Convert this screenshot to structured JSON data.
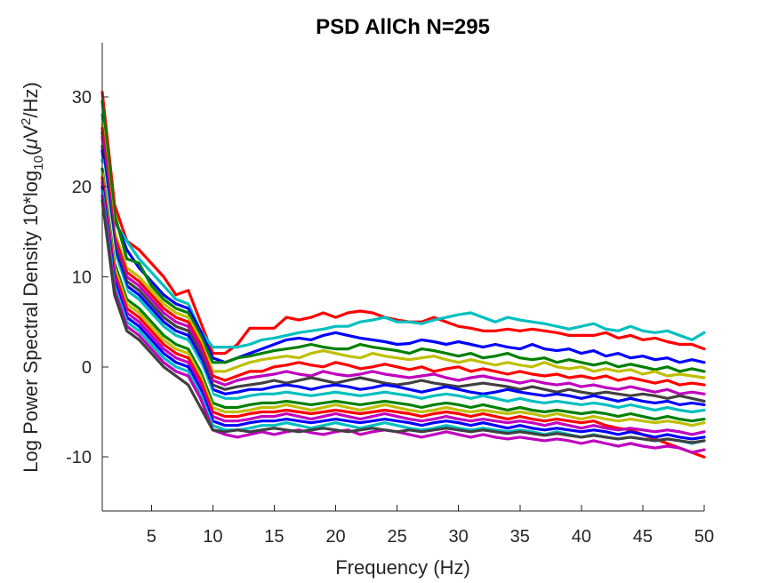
{
  "chart_data": {
    "type": "line",
    "title": "PSD AllCh N=295",
    "xlabel": "Frequency (Hz)",
    "ylabel": {
      "prefix": "Log Power Spectral Density 10*log",
      "sub": "10",
      "open": "(",
      "mu": "μ",
      "v": "V",
      "sup": "2",
      "suffix": "/Hz)"
    },
    "xlim": [
      1,
      50
    ],
    "ylim": [
      -16,
      36
    ],
    "xticks": [
      5,
      10,
      15,
      20,
      25,
      30,
      35,
      40,
      45,
      50
    ],
    "xtick_labels": [
      "5",
      "10",
      "15",
      "20",
      "25",
      "30",
      "35",
      "40",
      "45",
      "50"
    ],
    "yticks": [
      -10,
      0,
      10,
      20,
      30
    ],
    "ytick_labels": [
      "-10",
      "0",
      "10",
      "20",
      "30"
    ],
    "grid": false,
    "legend": "none",
    "colors": [
      "#ff0000",
      "#00bfbf",
      "#0000ff",
      "#008000",
      "#bfbf00",
      "#bf00bf",
      "#404040",
      "#ffffff"
    ],
    "x": [
      1,
      2,
      3,
      4,
      5,
      6,
      7,
      8,
      9,
      10,
      11,
      12,
      13,
      14,
      15,
      16,
      17,
      18,
      19,
      20,
      21,
      22,
      23,
      24,
      25,
      26,
      27,
      28,
      29,
      30,
      31,
      32,
      33,
      34,
      35,
      36,
      37,
      38,
      39,
      40,
      41,
      42,
      43,
      44,
      45,
      46,
      47,
      48,
      49,
      50
    ],
    "series": [
      {
        "color": "#ff0000",
        "values": [
          30.5,
          18.0,
          14.0,
          13.0,
          11.5,
          10.0,
          8.0,
          8.5,
          5.0,
          1.5,
          1.5,
          2.5,
          4.3,
          4.3,
          4.3,
          5.5,
          5.2,
          5.5,
          6.0,
          5.5,
          6.0,
          6.2,
          6.0,
          5.5,
          5.2,
          5.0,
          5.0,
          5.5,
          5.0,
          4.5,
          4.3,
          4.0,
          4.0,
          4.2,
          4.0,
          4.2,
          4.0,
          3.8,
          3.5,
          3.5,
          3.5,
          3.8,
          3.2,
          3.5,
          3.0,
          3.2,
          2.8,
          2.5,
          2.5,
          2.0
        ]
      },
      {
        "color": "#00bfbf",
        "values": [
          28.0,
          16.0,
          14.0,
          12.0,
          10.5,
          9.0,
          7.5,
          7.0,
          4.0,
          2.2,
          2.2,
          2.2,
          2.5,
          3.0,
          3.2,
          3.5,
          3.8,
          4.0,
          4.2,
          4.5,
          4.5,
          5.0,
          5.2,
          5.5,
          5.0,
          5.0,
          4.8,
          5.2,
          5.5,
          5.8,
          6.0,
          5.5,
          5.0,
          5.5,
          5.2,
          5.0,
          4.8,
          4.5,
          4.2,
          4.5,
          4.8,
          4.2,
          4.0,
          4.5,
          4.0,
          3.8,
          4.0,
          3.5,
          3.0,
          3.8
        ]
      },
      {
        "color": "#0000ff",
        "values": [
          26.0,
          16.5,
          13.0,
          11.0,
          9.5,
          8.0,
          7.0,
          6.5,
          4.0,
          1.0,
          0.5,
          1.0,
          1.5,
          2.0,
          2.5,
          3.0,
          3.2,
          3.0,
          3.5,
          3.8,
          3.5,
          3.2,
          3.0,
          2.8,
          2.5,
          2.6,
          3.0,
          2.8,
          2.5,
          2.8,
          2.5,
          2.2,
          2.5,
          2.2,
          2.0,
          2.5,
          2.0,
          1.8,
          2.0,
          1.5,
          1.8,
          1.2,
          1.5,
          1.0,
          1.2,
          0.8,
          1.0,
          0.5,
          0.8,
          0.5
        ]
      },
      {
        "color": "#008000",
        "values": [
          29.5,
          17.0,
          12.0,
          11.5,
          9.0,
          7.5,
          6.5,
          6.0,
          3.5,
          0.5,
          0.5,
          1.0,
          1.2,
          1.5,
          1.8,
          2.0,
          2.2,
          2.5,
          2.2,
          2.0,
          2.0,
          2.5,
          2.2,
          2.0,
          1.8,
          1.5,
          2.0,
          1.8,
          1.5,
          1.2,
          1.5,
          1.0,
          1.2,
          1.5,
          1.0,
          0.8,
          1.0,
          0.5,
          0.8,
          0.5,
          0.2,
          0.5,
          0.0,
          0.3,
          0.0,
          -0.3,
          0.0,
          -0.5,
          -0.2,
          -0.5
        ]
      },
      {
        "color": "#bfbf00",
        "values": [
          27.0,
          15.0,
          11.0,
          10.0,
          8.5,
          7.0,
          6.0,
          5.5,
          3.0,
          -0.5,
          -0.5,
          0.0,
          0.5,
          0.8,
          1.0,
          1.2,
          1.0,
          1.5,
          1.8,
          1.5,
          1.2,
          1.0,
          1.5,
          1.2,
          1.0,
          0.8,
          1.0,
          1.2,
          0.8,
          0.5,
          0.8,
          0.5,
          0.2,
          0.5,
          0.2,
          0.0,
          0.5,
          0.0,
          -0.2,
          0.0,
          -0.5,
          -0.2,
          -0.5,
          -0.3,
          -0.8,
          -0.5,
          -1.0,
          -0.8,
          -1.0,
          -1.2
        ]
      },
      {
        "color": "#ff0000",
        "values": [
          26.5,
          14.5,
          10.5,
          9.5,
          8.0,
          6.5,
          5.5,
          5.0,
          2.5,
          -1.0,
          -1.5,
          -1.0,
          -0.5,
          -0.5,
          0.0,
          0.2,
          0.5,
          0.2,
          0.0,
          0.5,
          0.2,
          -0.2,
          0.0,
          0.3,
          0.0,
          -0.3,
          0.0,
          -0.5,
          -0.2,
          0.0,
          -0.5,
          -0.2,
          -0.5,
          -0.8,
          -0.5,
          -0.8,
          -1.0,
          -0.8,
          -1.2,
          -1.0,
          -1.3,
          -1.0,
          -1.5,
          -1.2,
          -1.5,
          -1.8,
          -1.5,
          -2.0,
          -1.8,
          -2.0
        ]
      },
      {
        "color": "#bf00bf",
        "values": [
          25.5,
          14.0,
          10.0,
          9.0,
          7.5,
          6.0,
          5.0,
          4.5,
          2.0,
          -1.5,
          -2.0,
          -1.5,
          -1.2,
          -1.0,
          -0.8,
          -0.5,
          -0.8,
          -1.0,
          -0.5,
          -0.8,
          -1.0,
          -0.8,
          -0.5,
          -0.8,
          -1.0,
          -1.2,
          -1.0,
          -0.8,
          -1.2,
          -1.5,
          -1.2,
          -1.0,
          -1.3,
          -1.5,
          -1.8,
          -1.5,
          -1.8,
          -2.0,
          -1.8,
          -2.2,
          -2.0,
          -2.3,
          -2.5,
          -2.2,
          -2.5,
          -2.8,
          -2.5,
          -3.0,
          -2.8,
          -3.0
        ]
      },
      {
        "color": "#404040",
        "values": [
          24.5,
          13.5,
          9.5,
          8.5,
          7.0,
          5.5,
          4.5,
          4.0,
          1.5,
          -2.0,
          -2.5,
          -2.2,
          -2.0,
          -1.8,
          -1.5,
          -1.8,
          -1.5,
          -1.2,
          -1.5,
          -1.8,
          -1.5,
          -1.2,
          -1.5,
          -1.8,
          -2.0,
          -1.8,
          -1.5,
          -1.8,
          -2.0,
          -2.2,
          -2.0,
          -1.8,
          -2.0,
          -2.2,
          -2.5,
          -2.2,
          -2.5,
          -2.8,
          -2.5,
          -2.8,
          -3.0,
          -2.8,
          -3.0,
          -3.2,
          -3.0,
          -3.2,
          -3.5,
          -3.2,
          -3.5,
          -3.8
        ]
      },
      {
        "color": "#0000ff",
        "values": [
          24.0,
          13.0,
          9.0,
          8.0,
          6.5,
          5.0,
          4.0,
          3.5,
          1.0,
          -2.5,
          -3.0,
          -2.8,
          -2.5,
          -2.5,
          -2.2,
          -2.0,
          -2.2,
          -2.5,
          -2.2,
          -2.0,
          -2.2,
          -2.5,
          -2.3,
          -2.0,
          -2.2,
          -2.5,
          -2.8,
          -2.5,
          -2.2,
          -2.5,
          -2.8,
          -3.0,
          -2.8,
          -2.5,
          -2.8,
          -3.0,
          -3.2,
          -3.0,
          -3.2,
          -3.5,
          -3.2,
          -3.5,
          -3.8,
          -3.5,
          -3.8,
          -4.0,
          -3.8,
          -4.2,
          -4.0,
          -4.2
        ]
      },
      {
        "color": "#00bfbf",
        "values": [
          23.0,
          12.5,
          8.5,
          7.5,
          6.0,
          4.5,
          3.5,
          3.0,
          0.5,
          -3.0,
          -3.5,
          -3.5,
          -3.2,
          -3.0,
          -3.0,
          -2.8,
          -3.0,
          -3.2,
          -3.0,
          -2.8,
          -3.0,
          -3.2,
          -3.0,
          -2.8,
          -3.0,
          -3.2,
          -3.5,
          -3.2,
          -3.0,
          -3.2,
          -3.5,
          -3.2,
          -3.5,
          -3.8,
          -3.5,
          -3.8,
          -4.0,
          -3.8,
          -4.0,
          -4.2,
          -4.0,
          -4.2,
          -4.5,
          -4.2,
          -4.5,
          -4.8,
          -4.5,
          -4.8,
          -5.0,
          -4.8
        ]
      },
      {
        "color": "#ffffff",
        "values": [
          22.5,
          12.0,
          8.0,
          7.0,
          5.5,
          4.0,
          3.0,
          2.5,
          0.0,
          -3.5,
          -4.0,
          -4.0,
          -3.8,
          -3.5,
          -3.5,
          -3.2,
          -3.5,
          -3.8,
          -3.5,
          -3.2,
          -3.5,
          -3.8,
          -3.5,
          -3.2,
          -3.5,
          -3.8,
          -4.0,
          -3.8,
          -3.5,
          -3.8,
          -4.0,
          -3.8,
          -4.0,
          -4.2,
          -4.0,
          -4.2,
          -4.5,
          -4.2,
          -4.5,
          -4.8,
          -4.5,
          -4.8,
          -5.0,
          -4.8,
          -5.0,
          -5.2,
          -5.0,
          -5.2,
          -5.5,
          -5.2
        ]
      },
      {
        "color": "#008000",
        "values": [
          22.0,
          11.5,
          7.5,
          6.5,
          5.0,
          3.5,
          2.5,
          2.0,
          -0.5,
          -4.0,
          -4.5,
          -4.5,
          -4.2,
          -4.0,
          -4.0,
          -3.8,
          -4.0,
          -4.2,
          -4.0,
          -3.8,
          -4.0,
          -4.2,
          -4.0,
          -3.8,
          -4.0,
          -4.2,
          -4.5,
          -4.2,
          -4.0,
          -4.2,
          -4.5,
          -4.2,
          -4.5,
          -4.8,
          -4.5,
          -4.8,
          -5.0,
          -4.8,
          -5.0,
          -5.2,
          -5.0,
          -5.2,
          -5.5,
          -5.2,
          -5.5,
          -5.8,
          -5.5,
          -5.8,
          -6.0,
          -5.8
        ]
      },
      {
        "color": "#bfbf00",
        "values": [
          21.5,
          11.0,
          7.0,
          6.0,
          4.5,
          3.0,
          2.0,
          1.5,
          -1.0,
          -4.5,
          -5.0,
          -5.0,
          -4.8,
          -4.5,
          -4.5,
          -4.2,
          -4.5,
          -4.8,
          -4.5,
          -4.2,
          -4.5,
          -4.8,
          -4.5,
          -4.2,
          -4.5,
          -4.8,
          -5.0,
          -4.8,
          -4.5,
          -4.8,
          -5.0,
          -4.8,
          -5.0,
          -5.2,
          -5.0,
          -5.2,
          -5.5,
          -5.2,
          -5.5,
          -5.8,
          -5.5,
          -5.8,
          -6.0,
          -5.8,
          -6.0,
          -6.2,
          -6.0,
          -6.2,
          -6.5,
          -6.2
        ]
      },
      {
        "color": "#ff0000",
        "values": [
          21.0,
          10.5,
          6.5,
          5.5,
          4.0,
          2.5,
          1.5,
          1.0,
          -1.5,
          -5.0,
          -5.5,
          -5.5,
          -5.2,
          -5.0,
          -5.0,
          -4.8,
          -5.0,
          -5.2,
          -5.0,
          -4.8,
          -5.0,
          -5.2,
          -5.0,
          -4.8,
          -5.0,
          -5.2,
          -5.5,
          -5.2,
          -5.0,
          -5.2,
          -5.5,
          -5.2,
          -5.5,
          -5.8,
          -5.5,
          -5.8,
          -6.0,
          -5.8,
          -6.0,
          -6.2,
          -6.0,
          -6.5,
          -6.8,
          -7.0,
          -7.5,
          -8.0,
          -8.5,
          -9.0,
          -9.5,
          -10.0
        ]
      },
      {
        "color": "#bf00bf",
        "values": [
          20.5,
          10.0,
          6.0,
          5.0,
          3.5,
          2.0,
          1.0,
          0.5,
          -2.0,
          -5.5,
          -6.0,
          -6.0,
          -5.8,
          -5.5,
          -5.5,
          -5.2,
          -5.5,
          -5.8,
          -5.5,
          -5.2,
          -5.5,
          -5.8,
          -5.5,
          -5.2,
          -5.5,
          -5.8,
          -6.0,
          -5.8,
          -5.5,
          -5.8,
          -6.0,
          -5.8,
          -6.0,
          -6.2,
          -6.0,
          -6.2,
          -6.5,
          -6.2,
          -6.5,
          -6.8,
          -6.5,
          -6.8,
          -7.0,
          -6.8,
          -7.0,
          -7.2,
          -7.0,
          -7.2,
          -7.5,
          -7.2
        ]
      },
      {
        "color": "#0000ff",
        "values": [
          20.0,
          9.5,
          5.5,
          4.5,
          3.0,
          1.5,
          0.5,
          0.0,
          -2.5,
          -6.0,
          -6.5,
          -6.5,
          -6.2,
          -6.0,
          -6.0,
          -5.8,
          -6.0,
          -6.2,
          -6.0,
          -5.8,
          -6.0,
          -6.2,
          -6.0,
          -5.8,
          -6.0,
          -6.2,
          -6.5,
          -6.2,
          -6.0,
          -6.2,
          -6.5,
          -6.2,
          -6.5,
          -6.8,
          -6.5,
          -6.8,
          -7.0,
          -6.8,
          -7.0,
          -7.2,
          -7.0,
          -7.2,
          -7.5,
          -7.2,
          -7.5,
          -7.8,
          -7.5,
          -7.8,
          -8.0,
          -7.8
        ]
      },
      {
        "color": "#00bfbf",
        "values": [
          19.5,
          9.0,
          5.0,
          4.0,
          2.5,
          1.0,
          0.0,
          -0.5,
          -3.0,
          -6.5,
          -7.0,
          -7.0,
          -6.8,
          -6.5,
          -6.5,
          -6.2,
          -6.5,
          -6.8,
          -6.5,
          -6.2,
          -6.5,
          -6.8,
          -6.5,
          -6.2,
          -6.5,
          -6.8,
          -7.0,
          -6.8,
          -6.5,
          -6.8,
          -7.0,
          -6.8,
          -7.0,
          -7.2,
          -7.0,
          -7.2,
          -7.5,
          -7.2,
          -7.5,
          -7.8,
          -7.5,
          -7.8,
          -8.0,
          -7.8,
          -8.0,
          -8.2,
          -8.0,
          -8.2,
          -8.5,
          -8.2
        ]
      },
      {
        "color": "#bf00bf",
        "values": [
          19.0,
          8.5,
          4.5,
          3.5,
          2.0,
          0.5,
          -0.5,
          -1.0,
          -3.5,
          -7.0,
          -7.5,
          -7.8,
          -7.5,
          -7.2,
          -7.5,
          -7.2,
          -7.0,
          -7.3,
          -7.5,
          -7.2,
          -7.0,
          -7.5,
          -7.2,
          -7.0,
          -7.2,
          -7.5,
          -7.8,
          -7.5,
          -7.2,
          -7.5,
          -7.8,
          -7.5,
          -7.8,
          -8.0,
          -7.8,
          -8.0,
          -8.2,
          -8.0,
          -8.2,
          -8.5,
          -8.2,
          -8.5,
          -8.8,
          -8.5,
          -8.8,
          -9.0,
          -8.8,
          -9.0,
          -9.5,
          -9.2
        ]
      },
      {
        "color": "#404040",
        "values": [
          18.5,
          8.0,
          4.0,
          3.0,
          1.5,
          0.0,
          -1.0,
          -2.0,
          -4.5,
          -7.0,
          -7.2,
          -7.0,
          -7.2,
          -7.0,
          -6.8,
          -7.0,
          -7.2,
          -7.0,
          -6.8,
          -7.0,
          -7.2,
          -7.0,
          -6.8,
          -7.0,
          -7.2,
          -7.0,
          -7.2,
          -7.0,
          -6.8,
          -7.0,
          -7.2,
          -7.0,
          -7.2,
          -7.4,
          -7.2,
          -7.4,
          -7.6,
          -7.4,
          -7.6,
          -7.8,
          -7.6,
          -7.8,
          -8.0,
          -7.8,
          -8.0,
          -8.2,
          -8.0,
          -8.2,
          -8.4,
          -8.2
        ]
      }
    ]
  }
}
